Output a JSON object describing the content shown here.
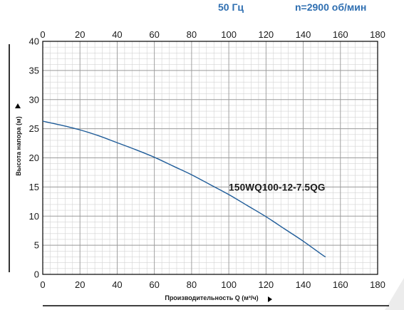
{
  "header": {
    "frequency": "50 Гц",
    "speed": "n=2900 об/мин"
  },
  "chart_data": {
    "type": "line",
    "title": "",
    "xlabel": "Производительность Q (м³/ч)",
    "ylabel": "Высота напора (м)",
    "xlim": [
      0,
      180
    ],
    "ylim": [
      0,
      40
    ],
    "x_ticks": [
      0,
      20,
      40,
      60,
      80,
      100,
      120,
      140,
      160,
      180
    ],
    "y_ticks": [
      0,
      5,
      10,
      15,
      20,
      25,
      30,
      35,
      40
    ],
    "grid": true,
    "minor_grid_step_x": 4,
    "minor_grid_step_y": 1,
    "colors": {
      "curve": "#1f5c99",
      "major_grid": "#9a9a9a",
      "minor_grid": "#d3d3d3",
      "axis": "#000000"
    },
    "series": [
      {
        "name": "150WQ100-12-7.5QG",
        "x": [
          0,
          10,
          20,
          30,
          40,
          50,
          60,
          70,
          80,
          90,
          100,
          110,
          120,
          130,
          140,
          150,
          152
        ],
        "y": [
          26.3,
          25.6,
          24.8,
          23.8,
          22.6,
          21.4,
          20.1,
          18.6,
          17.1,
          15.4,
          13.7,
          11.8,
          9.9,
          7.8,
          5.7,
          3.4,
          3.0
        ]
      }
    ],
    "annotations": [
      {
        "text": "150WQ100-12-7.5QG",
        "x": 105,
        "y": 15
      }
    ]
  }
}
